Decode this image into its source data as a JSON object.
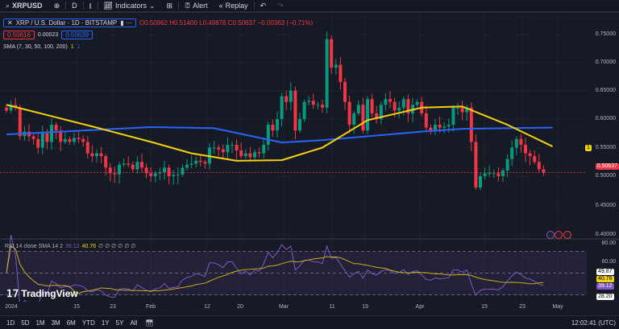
{
  "toolbar": {
    "symbol": "XRPUSD",
    "interval": "D",
    "indicators": "Indicators",
    "alert": "Alert",
    "replay": "Replay"
  },
  "legend": {
    "title": "XRP / U.S. Dollar · 1D · BITSTAMP",
    "ohlc": "O0.50962 H0.51400 L0.49876 C0.50637 −0.00363 (−0.71%)",
    "bid": "0.50616",
    "spread": "0.00023",
    "ask": "0.50639",
    "sma": "SMA (7, 30, 50, 100, 200)",
    "sma_flag1": "1",
    "sma_flag2": "1"
  },
  "price_axis": {
    "labels": [
      "0.75000",
      "0.70000",
      "0.65000",
      "0.60000",
      "0.55000",
      "0.50000",
      "0.45000",
      "0.40000"
    ],
    "current": "0.50637",
    "sma_tag": "1",
    "sma_tag2": "1"
  },
  "rsi": {
    "legend": "RSI 14 close SMA 14 2",
    "value": "39.12",
    "sma": "40.76",
    "extra": "∅ ∅ ∅ ∅ ∅ ∅",
    "axis": [
      "80.00",
      "60.00",
      "49.87",
      "40.76",
      "39.12",
      "28.20"
    ]
  },
  "time_axis": [
    "2024",
    "15",
    "23",
    "Feb",
    "12",
    "20",
    "Mar",
    "11",
    "19",
    "Apr",
    "15",
    "23",
    "May"
  ],
  "bottom": {
    "ranges": [
      "1D",
      "5D",
      "1M",
      "3M",
      "6M",
      "YTD",
      "1Y",
      "5Y",
      "All"
    ],
    "clock": "12:02:41 (UTC)"
  },
  "brand": "TradingView",
  "colors": {
    "up": "#089981",
    "down": "#f23645",
    "sma50": "#f5d10f",
    "sma200": "#2962ff",
    "rsi": "#7e57c2",
    "rsi_sma": "#c9b01a"
  },
  "chart_data": {
    "type": "candlestick",
    "start": "2023-12-31",
    "closes": [
      0.615,
      0.625,
      0.62,
      0.57,
      0.578,
      0.57,
      0.565,
      0.55,
      0.575,
      0.56,
      0.59,
      0.58,
      0.56,
      0.565,
      0.56,
      0.567,
      0.565,
      0.56,
      0.54,
      0.535,
      0.54,
      0.535,
      0.515,
      0.505,
      0.503,
      0.52,
      0.522,
      0.52,
      0.512,
      0.525,
      0.515,
      0.505,
      0.5,
      0.505,
      0.507,
      0.515,
      0.5,
      0.502,
      0.503,
      0.515,
      0.52,
      0.522,
      0.527,
      0.525,
      0.522,
      0.55,
      0.55,
      0.547,
      0.542,
      0.555,
      0.555,
      0.545,
      0.535,
      0.54,
      0.533,
      0.542,
      0.54,
      0.555,
      0.59,
      0.58,
      0.6,
      0.64,
      0.63,
      0.65,
      0.58,
      0.6,
      0.63,
      0.632,
      0.625,
      0.625,
      0.62,
      0.74,
      0.69,
      0.695,
      0.665,
      0.63,
      0.59,
      0.61,
      0.625,
      0.58,
      0.635,
      0.61,
      0.6,
      0.625,
      0.635,
      0.63,
      0.615,
      0.62,
      0.635,
      0.61,
      0.625,
      0.63,
      0.61,
      0.585,
      0.58,
      0.59,
      0.585,
      0.587,
      0.59,
      0.62,
      0.62,
      0.612,
      0.62,
      0.56,
      0.48,
      0.5,
      0.505,
      0.505,
      0.505,
      0.5,
      0.51,
      0.53,
      0.55,
      0.565,
      0.555,
      0.54,
      0.535,
      0.525,
      0.512,
      0.50637
    ],
    "sma50": [
      [
        0,
        0.625
      ],
      [
        10,
        0.605
      ],
      [
        20,
        0.585
      ],
      [
        32,
        0.56
      ],
      [
        41,
        0.54
      ],
      [
        51,
        0.527
      ],
      [
        61,
        0.528
      ],
      [
        70,
        0.55
      ],
      [
        80,
        0.598
      ],
      [
        92,
        0.62
      ],
      [
        101,
        0.622
      ],
      [
        111,
        0.59
      ],
      [
        121,
        0.552
      ]
    ],
    "sma200": [
      [
        0,
        0.573
      ],
      [
        32,
        0.586
      ],
      [
        46,
        0.584
      ],
      [
        61,
        0.559
      ],
      [
        70,
        0.563
      ],
      [
        92,
        0.578
      ],
      [
        101,
        0.583
      ],
      [
        121,
        0.585
      ]
    ],
    "ylim": [
      0.39,
      0.77
    ]
  }
}
